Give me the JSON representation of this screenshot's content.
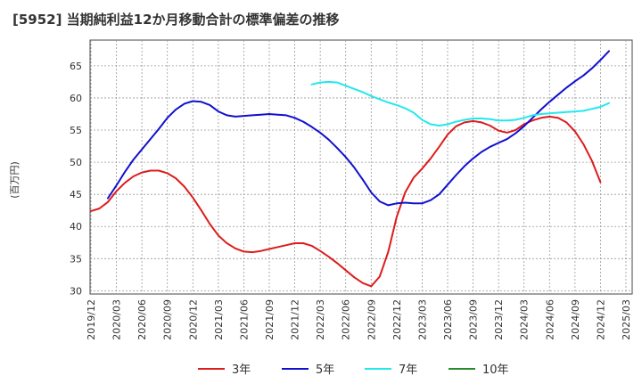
{
  "chart_data": {
    "type": "line",
    "title": "[5952]  当期純利益12か月移動合計の標準偏差の推移",
    "ylabel": "(百万円)",
    "xlabel": "",
    "ylim": [
      29.5,
      69
    ],
    "yticks": [
      30,
      35,
      40,
      45,
      50,
      55,
      60,
      65
    ],
    "x_tick_labels": [
      "2019/12",
      "2020/03",
      "2020/06",
      "2020/09",
      "2020/12",
      "2021/03",
      "2021/06",
      "2021/09",
      "2021/12",
      "2022/03",
      "2022/06",
      "2022/09",
      "2022/12",
      "2023/03",
      "2023/06",
      "2023/09",
      "2023/12",
      "2024/03",
      "2024/06",
      "2024/09",
      "2024/12",
      "2025/03"
    ],
    "grid": true,
    "legend_position": "bottom",
    "series": [
      {
        "name": "3年",
        "color": "#dd1c1c",
        "start_index": 0,
        "values": [
          42.4,
          42.8,
          43.8,
          45.5,
          46.8,
          47.8,
          48.4,
          48.7,
          48.7,
          48.3,
          47.5,
          46.2,
          44.5,
          42.5,
          40.4,
          38.6,
          37.4,
          36.6,
          36.1,
          36.0,
          36.2,
          36.5,
          36.8,
          37.1,
          37.4,
          37.4,
          37.0,
          36.2,
          35.3,
          34.3,
          33.2,
          32.1,
          31.2,
          30.7,
          32.2,
          36.0,
          41.5,
          45.3,
          47.6,
          49.0,
          50.6,
          52.4,
          54.3,
          55.6,
          56.2,
          56.4,
          56.2,
          55.7,
          54.9,
          54.6,
          55.0,
          55.9,
          56.5,
          56.9,
          57.1,
          56.9,
          56.2,
          54.8,
          52.8,
          50.2,
          46.9
        ]
      },
      {
        "name": "5年",
        "color": "#1010d0",
        "start_index": 2,
        "values": [
          44.4,
          46.4,
          48.5,
          50.4,
          52.0,
          53.6,
          55.2,
          56.9,
          58.2,
          59.1,
          59.5,
          59.4,
          58.9,
          57.9,
          57.3,
          57.1,
          57.2,
          57.3,
          57.4,
          57.5,
          57.4,
          57.3,
          56.9,
          56.3,
          55.5,
          54.6,
          53.5,
          52.2,
          50.8,
          49.2,
          47.3,
          45.3,
          43.9,
          43.3,
          43.6,
          43.7,
          43.6,
          43.6,
          44.1,
          45.0,
          46.5,
          48.0,
          49.4,
          50.6,
          51.6,
          52.4,
          53.0,
          53.6,
          54.5,
          55.6,
          56.9,
          58.2,
          59.4,
          60.5,
          61.6,
          62.6,
          63.5,
          64.6,
          65.9,
          67.3
        ]
      },
      {
        "name": "7年",
        "color": "#22e8ee",
        "start_index": 26,
        "values": [
          62.1,
          62.4,
          62.5,
          62.4,
          61.9,
          61.4,
          60.9,
          60.3,
          59.8,
          59.3,
          58.9,
          58.4,
          57.7,
          56.6,
          55.9,
          55.7,
          55.9,
          56.3,
          56.6,
          56.8,
          56.8,
          56.7,
          56.5,
          56.5,
          56.6,
          56.9,
          57.3,
          57.5,
          57.6,
          57.7,
          57.8,
          57.9,
          58.0,
          58.3,
          58.6,
          59.2
        ]
      },
      {
        "name": "10年",
        "color": "#2a8a2a",
        "start_index": 0,
        "values": []
      }
    ]
  }
}
